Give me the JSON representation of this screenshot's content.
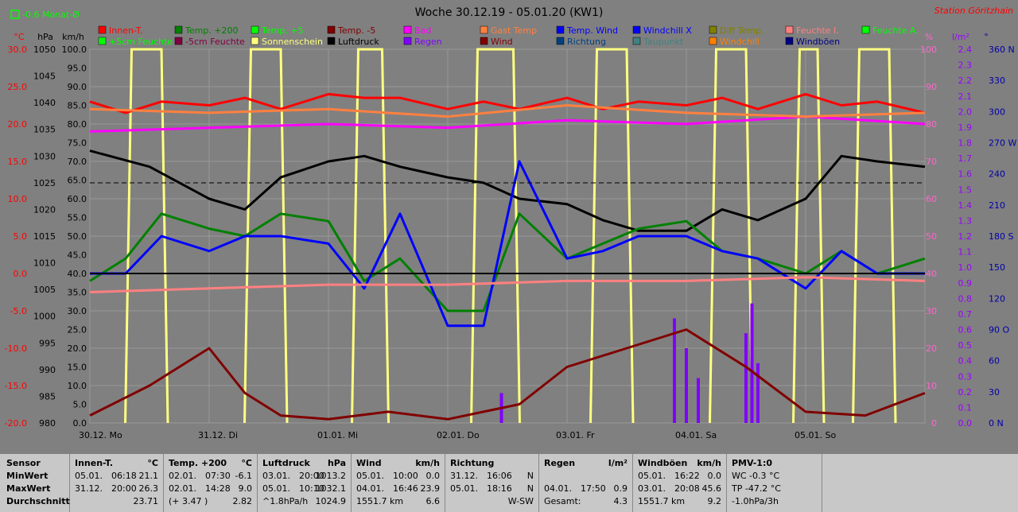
{
  "header": {
    "title": "Woche 30.12.19 - 05.01.20 (KW1)",
    "station": "Station Göritzhain",
    "monthly": "-0.6 Monat-Ø"
  },
  "axes": {
    "temp": {
      "unit": "°C",
      "ticks": [
        "30.0",
        "25.0",
        "20.0",
        "15.0",
        "10.0",
        "5.0",
        "0.0",
        "-5.0",
        "-10.0",
        "-15.0",
        "-20.0"
      ],
      "color": "#ff0000"
    },
    "pressure": {
      "unit": "hPa",
      "ticks": [
        "1050",
        "1045",
        "1040",
        "1035",
        "1030",
        "1025",
        "1020",
        "1015",
        "1010",
        "1005",
        "1000",
        "995",
        "990",
        "985",
        "980"
      ],
      "color": "#000000"
    },
    "speed": {
      "unit": "km/h",
      "ticks": [
        "100.0",
        "95.0",
        "90.0",
        "85.0",
        "80.0",
        "75.0",
        "70.0",
        "65.0",
        "60.0",
        "55.0",
        "50.0",
        "45.0",
        "40.0",
        "35.0",
        "30.0",
        "25.0",
        "20.0",
        "15.0",
        "10.0",
        "5.0",
        "0.0"
      ],
      "color": "#000000"
    },
    "percent": {
      "unit": "%",
      "ticks": [
        "100",
        "90",
        "80",
        "70",
        "60",
        "50",
        "40",
        "30",
        "20",
        "10",
        "0"
      ],
      "color": "#ff66cc"
    },
    "rain": {
      "unit": "l/m²",
      "ticks": [
        "2.4",
        "2.3",
        "2.2",
        "2.1",
        "2.0",
        "1.9",
        "1.8",
        "1.7",
        "1.6",
        "1.5",
        "1.4",
        "1.3",
        "1.2",
        "1.1",
        "1.0",
        "0.9",
        "0.8",
        "0.7",
        "0.6",
        "0.5",
        "0.4",
        "0.3",
        "0.2",
        "0.1",
        "0.0"
      ],
      "color": "#9900ff"
    },
    "direction": {
      "unit": "°",
      "ticks": [
        "360 N",
        "330",
        "300",
        "270 W",
        "240",
        "210",
        "180 S",
        "150",
        "120",
        "90 O",
        "60",
        "30",
        "0 N"
      ],
      "color": "#0000aa"
    },
    "x_labels": [
      "30.12. Mo",
      "31.12. Di",
      "01.01. Mi",
      "02.01. Do",
      "03.01. Fr",
      "04.01. Sa",
      "05.01. So"
    ]
  },
  "legend": [
    {
      "label": "Innen-T.",
      "color": "#ff0000"
    },
    {
      "label": "Temp. +200",
      "color": "#008000"
    },
    {
      "label": "Temp. +5",
      "color": "#00ff00"
    },
    {
      "label": "Temp. -5",
      "color": "#800000"
    },
    {
      "label": "Bad",
      "color": "#ff00ff"
    },
    {
      "label": "Gast Temp",
      "color": "#ff8040"
    },
    {
      "label": "Temp. Wind",
      "color": "#0000ff"
    },
    {
      "label": "Windchill X",
      "color": "#0000ff"
    },
    {
      "label": "Diff Temp.",
      "color": "#808000"
    },
    {
      "label": "Feuchte I.",
      "color": "#ff8080"
    },
    {
      "label": "Feuchte A.",
      "color": "#00ff00"
    },
    {
      "label": "+5cm Feuchte",
      "color": "#00ff00"
    },
    {
      "label": "-5cm Feuchte",
      "color": "#800040"
    },
    {
      "label": "Sonnenschein",
      "color": "#ffff80"
    },
    {
      "label": "Luftdruck",
      "color": "#000000"
    },
    {
      "label": "Regen",
      "color": "#8000ff"
    },
    {
      "label": "Wind",
      "color": "#800000"
    },
    {
      "label": "Richtung",
      "color": "#004080"
    },
    {
      "label": "Taupunkt",
      "color": "#408080"
    },
    {
      "label": "Windchill",
      "color": "#ff8000"
    },
    {
      "label": "Windböen",
      "color": "#000080"
    }
  ],
  "chart_data": {
    "type": "line",
    "title": "Woche 30.12.19 - 05.01.20 (KW1)",
    "x_unit": "days since 30.12. 00:00",
    "xlim": [
      0,
      7
    ],
    "temp_ylim": [
      -20,
      30
    ],
    "pressure_ylim": [
      980,
      1050
    ],
    "percent_ylim": [
      0,
      100
    ],
    "series": [
      {
        "name": "Innen-T.",
        "axis": "temp",
        "color": "#ff0000",
        "x": [
          0,
          0.3,
          0.6,
          1,
          1.3,
          1.6,
          2,
          2.3,
          2.6,
          3,
          3.3,
          3.6,
          4,
          4.3,
          4.6,
          5,
          5.3,
          5.6,
          6,
          6.3,
          6.6,
          7
        ],
        "y": [
          23,
          21.5,
          23,
          22.5,
          23.5,
          22,
          24,
          23.5,
          23.5,
          22,
          23,
          22,
          23.5,
          22,
          23,
          22.5,
          23.5,
          22,
          24,
          22.5,
          23,
          21.5
        ]
      },
      {
        "name": "Luftdruck",
        "axis": "pressure",
        "color": "#000000",
        "x": [
          0,
          0.5,
          1,
          1.3,
          1.6,
          2,
          2.3,
          2.6,
          3,
          3.3,
          3.6,
          4,
          4.3,
          4.6,
          5,
          5.3,
          5.6,
          6,
          6.3,
          6.6,
          7
        ],
        "y": [
          1031,
          1028,
          1022,
          1020,
          1026,
          1029,
          1030,
          1028,
          1026,
          1025,
          1022,
          1021,
          1018,
          1016,
          1016,
          1020,
          1018,
          1022,
          1030,
          1029,
          1028
        ]
      },
      {
        "name": "Temp. +200",
        "axis": "temp",
        "color": "#008000",
        "x": [
          0,
          0.3,
          0.6,
          1,
          1.3,
          1.6,
          2,
          2.3,
          2.6,
          3,
          3.3,
          3.6,
          4,
          4.3,
          4.6,
          5,
          5.3,
          5.6,
          6,
          6.3,
          6.6,
          7
        ],
        "y": [
          -1,
          2,
          8,
          6,
          5,
          8,
          7,
          -1,
          2,
          -5,
          -5,
          8,
          2,
          4,
          6,
          7,
          3,
          2,
          0,
          3,
          0,
          2
        ]
      },
      {
        "name": "Temp. Wind",
        "axis": "temp",
        "color": "#0000ff",
        "x": [
          0,
          0.3,
          0.6,
          1,
          1.3,
          1.6,
          2,
          2.3,
          2.6,
          3,
          3.3,
          3.6,
          4,
          4.3,
          4.6,
          5,
          5.3,
          5.6,
          6,
          6.3,
          6.6,
          7
        ],
        "y": [
          0,
          0,
          5,
          3,
          5,
          5,
          4,
          -2,
          8,
          -7,
          -7,
          15,
          2,
          3,
          5,
          5,
          3,
          2,
          -2,
          3,
          0,
          0
        ]
      },
      {
        "name": "Feuchte I.",
        "axis": "percent",
        "color": "#ff8080",
        "x": [
          0,
          1,
          2,
          3,
          4,
          5,
          6,
          7
        ],
        "y": [
          35,
          36,
          37,
          37,
          38,
          38,
          39,
          38
        ]
      },
      {
        "name": "Bad",
        "axis": "percent",
        "color": "#ff00ff",
        "x": [
          0,
          1,
          2,
          3,
          4,
          5,
          6,
          7
        ],
        "y": [
          78,
          79,
          80,
          79,
          81,
          80,
          82,
          80
        ]
      },
      {
        "name": "Gast Temp",
        "axis": "percent",
        "color": "#ff8040",
        "x": [
          0,
          1,
          2,
          3,
          4,
          5,
          6,
          7
        ],
        "y": [
          84,
          83,
          84,
          82,
          85,
          83,
          82,
          83
        ]
      },
      {
        "name": "Wind",
        "axis": "speed",
        "color": "#800000",
        "x": [
          0,
          0.5,
          1,
          1.3,
          1.6,
          2,
          2.5,
          3,
          3.3,
          3.6,
          4,
          4.5,
          5,
          5.5,
          6,
          6.5,
          7
        ],
        "y": [
          2,
          10,
          20,
          8,
          2,
          1,
          3,
          1,
          3,
          5,
          15,
          20,
          25,
          15,
          3,
          2,
          8
        ]
      }
    ],
    "sunshine_blocks": [
      [
        0.35,
        0.6
      ],
      [
        1.35,
        1.6
      ],
      [
        2.25,
        2.45
      ],
      [
        3.25,
        3.55
      ],
      [
        4.25,
        4.5
      ],
      [
        5.25,
        5.5
      ],
      [
        5.95,
        6.1
      ],
      [
        6.45,
        6.7
      ]
    ],
    "rain_bars": [
      {
        "x": 3.45,
        "v": 0.2
      },
      {
        "x": 4.9,
        "v": 0.7
      },
      {
        "x": 5.0,
        "v": 0.5
      },
      {
        "x": 5.1,
        "v": 0.3
      },
      {
        "x": 5.5,
        "v": 0.6
      },
      {
        "x": 5.55,
        "v": 0.8
      },
      {
        "x": 5.6,
        "v": 0.4
      }
    ]
  },
  "table": {
    "row_labels": [
      "Sensor",
      "MinWert",
      "MaxWert",
      "Durchschnitt"
    ],
    "columns": [
      {
        "title": "Innen-T.",
        "unit": "°C",
        "min": [
          "05.01.",
          "06:18",
          "21.1"
        ],
        "max": [
          "31.12.",
          "20:00",
          "26.3"
        ],
        "avg": [
          "",
          "",
          "23.71"
        ]
      },
      {
        "title": "Temp. +200",
        "unit": "°C",
        "min": [
          "02.01.",
          "07:30",
          "-6.1"
        ],
        "max": [
          "02.01.",
          "14:28",
          "9.0"
        ],
        "avg": [
          "(+ 3.47 )",
          "",
          "2.82"
        ]
      },
      {
        "title": "Luftdruck",
        "unit": "hPa",
        "min": [
          "03.01.",
          "20:00",
          "1013.2"
        ],
        "max": [
          "05.01.",
          "10:10",
          "1032.1"
        ],
        "avg": [
          "^1.8hPa/h",
          "",
          "1024.9"
        ]
      },
      {
        "title": "Wind",
        "unit": "km/h",
        "min": [
          "05.01.",
          "10:00",
          "0.0"
        ],
        "max": [
          "04.01.",
          "16:46",
          "23.9"
        ],
        "avg": [
          "1551.7 km",
          "",
          "6.6"
        ]
      },
      {
        "title": "Richtung",
        "unit": "",
        "min": [
          "31.12.",
          "16:06",
          "N"
        ],
        "max": [
          "05.01.",
          "18:16",
          "N"
        ],
        "avg": [
          "",
          "",
          "W-SW"
        ]
      },
      {
        "title": "Regen",
        "unit": "l/m²",
        "min": [
          "",
          "",
          ""
        ],
        "max": [
          "04.01.",
          "17:50",
          "0.9"
        ],
        "avg": [
          "Gesamt:",
          "",
          "4.3"
        ]
      },
      {
        "title": "Windböen",
        "unit": "km/h",
        "min": [
          "05.01.",
          "16:22",
          "0.0"
        ],
        "max": [
          "03.01.",
          "20:08",
          "45.6"
        ],
        "avg": [
          "1551.7 km",
          "",
          "9.2"
        ]
      },
      {
        "title": "PMV-1:0",
        "unit": "",
        "min": [
          "WC -0.3 °C",
          "",
          ""
        ],
        "max": [
          "TP -47.2 °C",
          "",
          ""
        ],
        "avg": [
          "-1.0hPa/3h",
          "",
          ""
        ]
      }
    ]
  }
}
